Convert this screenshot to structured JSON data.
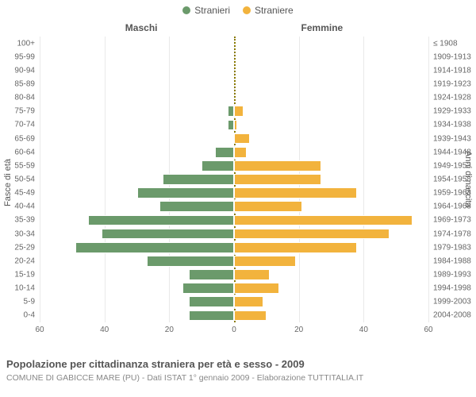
{
  "legend": {
    "male": {
      "label": "Stranieri",
      "color": "#6b9a6b"
    },
    "female": {
      "label": "Straniere",
      "color": "#f2b33d"
    }
  },
  "headers": {
    "left": "Maschi",
    "right": "Femmine"
  },
  "axis_labels": {
    "left": "Fasce di età",
    "right": "Anni di nascita"
  },
  "chart": {
    "type": "bar",
    "xmax": 60,
    "xtick_step": 20,
    "xticks": [
      60,
      40,
      20,
      0,
      20,
      40,
      60
    ],
    "grid_color": "#e9e9e9",
    "center_line_color": "#8a7a00",
    "background_color": "#ffffff",
    "bar_border_color": "#ffffff",
    "male_color": "#6b9a6b",
    "female_color": "#f2b33d",
    "label_fontsize": 10,
    "rows": [
      {
        "age": "100+",
        "birth": "≤ 1908",
        "m": 0,
        "f": 0
      },
      {
        "age": "95-99",
        "birth": "1909-1913",
        "m": 0,
        "f": 0
      },
      {
        "age": "90-94",
        "birth": "1914-1918",
        "m": 0,
        "f": 0
      },
      {
        "age": "85-89",
        "birth": "1919-1923",
        "m": 0,
        "f": 0
      },
      {
        "age": "80-84",
        "birth": "1924-1928",
        "m": 0,
        "f": 0
      },
      {
        "age": "75-79",
        "birth": "1929-1933",
        "m": 2,
        "f": 3
      },
      {
        "age": "70-74",
        "birth": "1934-1938",
        "m": 2,
        "f": 1
      },
      {
        "age": "65-69",
        "birth": "1939-1943",
        "m": 0,
        "f": 5
      },
      {
        "age": "60-64",
        "birth": "1944-1948",
        "m": 6,
        "f": 4
      },
      {
        "age": "55-59",
        "birth": "1949-1953",
        "m": 10,
        "f": 27
      },
      {
        "age": "50-54",
        "birth": "1954-1958",
        "m": 22,
        "f": 27
      },
      {
        "age": "45-49",
        "birth": "1959-1963",
        "m": 30,
        "f": 38
      },
      {
        "age": "40-44",
        "birth": "1964-1968",
        "m": 23,
        "f": 21
      },
      {
        "age": "35-39",
        "birth": "1969-1973",
        "m": 45,
        "f": 55
      },
      {
        "age": "30-34",
        "birth": "1974-1978",
        "m": 41,
        "f": 48
      },
      {
        "age": "25-29",
        "birth": "1979-1983",
        "m": 49,
        "f": 38
      },
      {
        "age": "20-24",
        "birth": "1984-1988",
        "m": 27,
        "f": 19
      },
      {
        "age": "15-19",
        "birth": "1989-1993",
        "m": 14,
        "f": 11
      },
      {
        "age": "10-14",
        "birth": "1994-1998",
        "m": 16,
        "f": 14
      },
      {
        "age": "5-9",
        "birth": "1999-2003",
        "m": 14,
        "f": 9
      },
      {
        "age": "0-4",
        "birth": "2004-2008",
        "m": 14,
        "f": 10
      }
    ]
  },
  "footer": {
    "title": "Popolazione per cittadinanza straniera per età e sesso - 2009",
    "subtitle": "COMUNE DI GABICCE MARE (PU) - Dati ISTAT 1° gennaio 2009 - Elaborazione TUTTITALIA.IT"
  }
}
